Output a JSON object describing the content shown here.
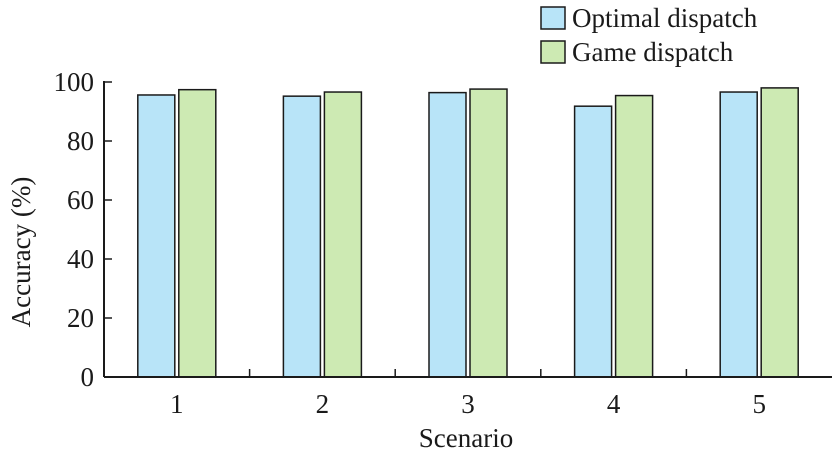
{
  "chart_data": {
    "type": "bar",
    "categories": [
      "1",
      "2",
      "3",
      "4",
      "5"
    ],
    "series": [
      {
        "name": "Optimal dispatch",
        "values": [
          95.6,
          95.2,
          96.4,
          91.8,
          96.6
        ],
        "color": "#b8e4f8"
      },
      {
        "name": "Game dispatch",
        "values": [
          97.4,
          96.6,
          97.6,
          95.4,
          98.0
        ],
        "color": "#cdeab3"
      }
    ],
    "xlabel": "Scenario",
    "ylabel": "Accuracy (%)",
    "ylim": [
      0,
      100
    ],
    "yticks": [
      0,
      20,
      40,
      60,
      80,
      100
    ],
    "grid": false,
    "legend_position": "top-right"
  }
}
